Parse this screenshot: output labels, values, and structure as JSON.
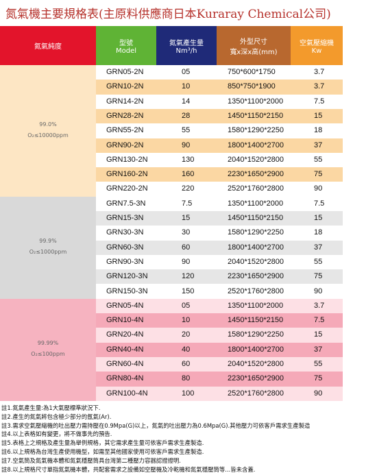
{
  "title": "氮氣機主要規格表(主原料供應商日本Kuraray Chemical公司)",
  "header": {
    "purity": "氮氣純度",
    "model": "型號",
    "model_en": "Model",
    "flow": "氮氣產生量",
    "flow_unit": "Nm³/h",
    "size": "外型尺寸",
    "size_unit": "寬x深x高(mm)",
    "comp": "空氣壓縮機",
    "comp_unit": "Kw"
  },
  "groups": [
    {
      "purity": "99.0%",
      "range": "O₂≤10000ppm",
      "rows": [
        [
          "GRN05-2N",
          "05",
          "750*600*1750",
          "3.7"
        ],
        [
          "GRN10-2N",
          "10",
          "850*750*1900",
          "3.7"
        ],
        [
          "GRN14-2N",
          "14",
          "1350*1100*2000",
          "7.5"
        ],
        [
          "GRN28-2N",
          "28",
          "1450*1150*2150",
          "15"
        ],
        [
          "GRN55-2N",
          "55",
          "1580*1290*2250",
          "18"
        ],
        [
          "GRN90-2N",
          "90",
          "1800*1400*2700",
          "37"
        ],
        [
          "GRN130-2N",
          "130",
          "2040*1520*2800",
          "55"
        ],
        [
          "GRN160-2N",
          "160",
          "2230*1650*2900",
          "75"
        ],
        [
          "GRN220-2N",
          "220",
          "2520*1760*2800",
          "90"
        ]
      ]
    },
    {
      "purity": "99.9%",
      "range": "O₂≤1000ppm",
      "rows": [
        [
          "GRN7.5-3N",
          "7.5",
          "1350*1100*2000",
          "7.5"
        ],
        [
          "GRN15-3N",
          "15",
          "1450*1150*2150",
          "15"
        ],
        [
          "GRN30-3N",
          "30",
          "1580*1290*2250",
          "18"
        ],
        [
          "GRN60-3N",
          "60",
          "1800*1400*2700",
          "37"
        ],
        [
          "GRN90-3N",
          "90",
          "2040*1520*2800",
          "55"
        ],
        [
          "GRN120-3N",
          "120",
          "2230*1650*2900",
          "75"
        ],
        [
          "GRN150-3N",
          "150",
          "2520*1760*2800",
          "90"
        ]
      ]
    },
    {
      "purity": "99.99%",
      "range": "O₂≤100ppm",
      "rows": [
        [
          "GRN05-4N",
          "05",
          "1350*1100*2000",
          "3.7"
        ],
        [
          "GRN10-4N",
          "10",
          "1450*1150*2150",
          "7.5"
        ],
        [
          "GRN20-4N",
          "20",
          "1580*1290*2250",
          "15"
        ],
        [
          "GRN40-4N",
          "40",
          "1800*1400*2700",
          "37"
        ],
        [
          "GRN60-4N",
          "60",
          "2040*1520*2800",
          "55"
        ],
        [
          "GRN80-4N",
          "80",
          "2230*1650*2900",
          "75"
        ],
        [
          "GRN100-4N",
          "100",
          "2520*1760*2800",
          "90"
        ]
      ]
    }
  ],
  "notes": [
    "註1.氮氣產生量:為1大氣壓標準狀況下.",
    "註2.產生的氮氣將包含極少部分的氬氣(Ar).",
    "註3.需求空氣壓縮機的吐出壓力需持壓在0.9Mpa(G)以上，氮氣的吐出壓力為0.6Mpa(G).其他壓力可依客戶需求生產製造",
    "註4.以上表格如有變更，將不做事先的預告.",
    "註5.表格上之規格及產生量為舉例規格，其它需求產生量可依客戶需求生產製造.",
    "註6.以上規格為台灣生產使用機型，如需至其他國家使用可依客戶需求生產製造.",
    "註7.空氣筒及氮氣機本體和氮氣穩壓筒具台灣第二種壓力容器認證證明.",
    "註8.以上規格尺寸單指氮氣機本體，共配套需求之設備如空壓機及冷乾機和氮氣穩壓筒等...皆未含蓋."
  ]
}
